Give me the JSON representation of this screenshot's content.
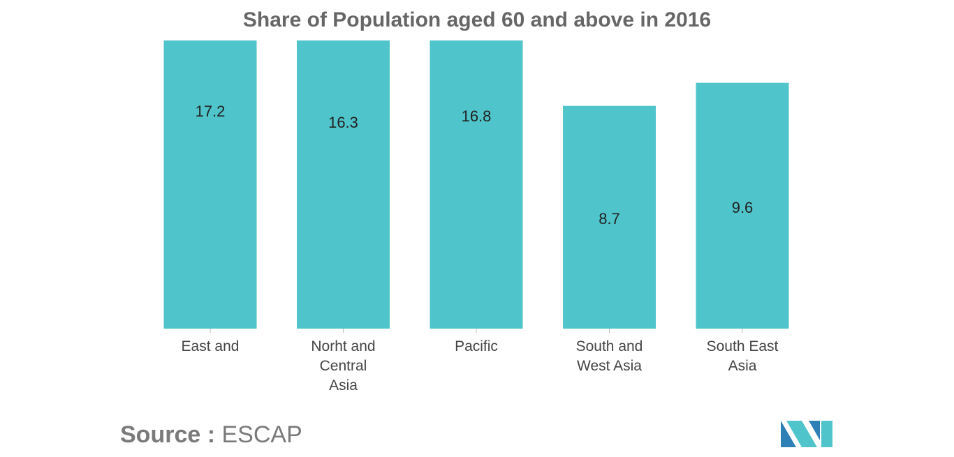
{
  "chart_data": {
    "type": "bar",
    "title": "Share of Population aged 60 and above in 2016",
    "categories": [
      [
        "East and"
      ],
      [
        "Norht and",
        "Central",
        "Asia"
      ],
      [
        "Pacific"
      ],
      [
        "South and",
        "West Asia"
      ],
      [
        "South East",
        "Asia"
      ]
    ],
    "values": [
      17.2,
      16.3,
      16.8,
      8.7,
      9.6
    ],
    "data_labels": [
      "17.2",
      "16.3",
      "16.8",
      "8.7",
      "9.6"
    ],
    "bar_color": "#4fc4ca",
    "xlabel": "",
    "ylabel": "",
    "grid": false,
    "legend": "none"
  },
  "source": {
    "key": "Source :",
    "value": "ESCAP"
  },
  "brand": {
    "icon": "mordor-logo-icon",
    "colors": [
      "#2e7fb6",
      "#4fc4ca"
    ]
  }
}
